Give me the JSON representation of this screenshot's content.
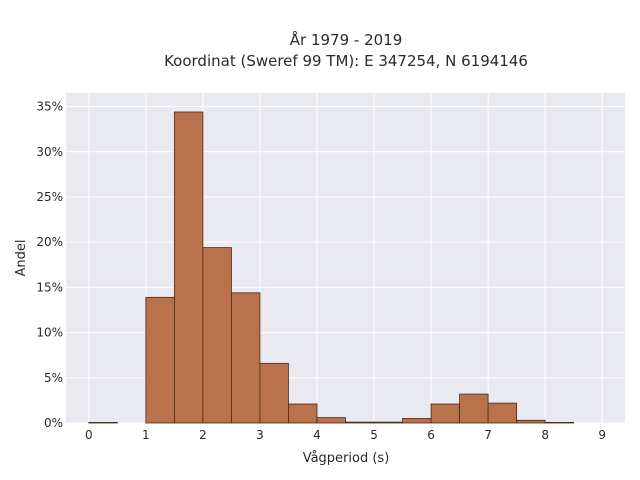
{
  "chart_data": {
    "type": "bar",
    "title_line1": "År 1979 - 2019",
    "title_line2": "Koordinat (Sweref 99 TM): E 347254, N 6194146",
    "xlabel": "Vågperiod (s)",
    "ylabel": "Andel",
    "xlim": [
      -0.4,
      9.4
    ],
    "ylim": [
      0,
      36.5
    ],
    "bin_width": 0.5,
    "x_ticks": [
      0,
      1,
      2,
      3,
      4,
      5,
      6,
      7,
      8,
      9
    ],
    "y_ticks": [
      0,
      5,
      10,
      15,
      20,
      25,
      30,
      35
    ],
    "y_tick_suffix": "%",
    "bins": [
      {
        "start": 0.0,
        "value": 0.05
      },
      {
        "start": 1.0,
        "value": 13.9
      },
      {
        "start": 1.5,
        "value": 34.4
      },
      {
        "start": 2.0,
        "value": 19.4
      },
      {
        "start": 2.5,
        "value": 14.4
      },
      {
        "start": 3.0,
        "value": 6.6
      },
      {
        "start": 3.5,
        "value": 2.1
      },
      {
        "start": 4.0,
        "value": 0.6
      },
      {
        "start": 4.5,
        "value": 0.1
      },
      {
        "start": 5.0,
        "value": 0.1
      },
      {
        "start": 5.5,
        "value": 0.5
      },
      {
        "start": 6.0,
        "value": 2.1
      },
      {
        "start": 6.5,
        "value": 3.2
      },
      {
        "start": 7.0,
        "value": 2.2
      },
      {
        "start": 7.5,
        "value": 0.3
      },
      {
        "start": 8.0,
        "value": 0.05
      }
    ],
    "bar_color": "#b9724b",
    "bar_edge_color": "#4a2a1a",
    "plot_bg": "#e9e9f1",
    "grid": true
  }
}
